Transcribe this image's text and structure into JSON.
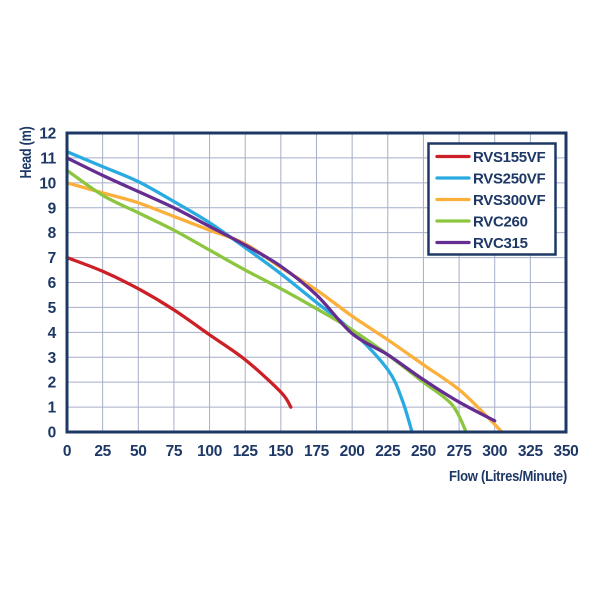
{
  "chart_data": {
    "type": "line",
    "title": "",
    "xlabel": "Flow (Litres/Minute)",
    "ylabel": "Head (m)",
    "xlim": [
      0,
      350
    ],
    "ylim": [
      0,
      12
    ],
    "xticks": [
      0,
      25,
      50,
      75,
      100,
      125,
      150,
      175,
      200,
      225,
      250,
      275,
      300,
      325,
      350
    ],
    "yticks": [
      0,
      1,
      2,
      3,
      4,
      5,
      6,
      7,
      8,
      9,
      10,
      11,
      12
    ],
    "grid": true,
    "legend_position": "top-right",
    "series": [
      {
        "name": "RVS155VF",
        "color": "#cc2026",
        "points": [
          [
            0,
            7.0
          ],
          [
            25,
            6.45
          ],
          [
            50,
            5.75
          ],
          [
            75,
            4.9
          ],
          [
            100,
            3.9
          ],
          [
            125,
            2.9
          ],
          [
            150,
            1.6
          ],
          [
            157,
            1.0
          ]
        ]
      },
      {
        "name": "RVS250VF",
        "color": "#29abe2",
        "points": [
          [
            0,
            11.25
          ],
          [
            25,
            10.65
          ],
          [
            50,
            10.05
          ],
          [
            75,
            9.25
          ],
          [
            100,
            8.4
          ],
          [
            125,
            7.4
          ],
          [
            150,
            6.35
          ],
          [
            175,
            5.2
          ],
          [
            200,
            4.05
          ],
          [
            225,
            2.5
          ],
          [
            235,
            1.3
          ],
          [
            242,
            0
          ]
        ]
      },
      {
        "name": "RVS300VF",
        "color": "#fbb03b",
        "points": [
          [
            0,
            10.0
          ],
          [
            25,
            9.6
          ],
          [
            50,
            9.2
          ],
          [
            75,
            8.65
          ],
          [
            100,
            8.1
          ],
          [
            125,
            7.55
          ],
          [
            150,
            6.6
          ],
          [
            175,
            5.7
          ],
          [
            200,
            4.65
          ],
          [
            225,
            3.7
          ],
          [
            250,
            2.7
          ],
          [
            275,
            1.7
          ],
          [
            295,
            0.6
          ],
          [
            305,
            0
          ]
        ]
      },
      {
        "name": "RVC260",
        "color": "#8cc63f",
        "points": [
          [
            0,
            10.5
          ],
          [
            25,
            9.5
          ],
          [
            50,
            8.8
          ],
          [
            75,
            8.1
          ],
          [
            100,
            7.3
          ],
          [
            125,
            6.5
          ],
          [
            150,
            5.75
          ],
          [
            175,
            4.95
          ],
          [
            200,
            4.1
          ],
          [
            225,
            3.1
          ],
          [
            250,
            2.0
          ],
          [
            270,
            1.1
          ],
          [
            280,
            0
          ]
        ]
      },
      {
        "name": "RVC315",
        "color": "#662d91",
        "points": [
          [
            0,
            11.0
          ],
          [
            25,
            10.3
          ],
          [
            50,
            9.65
          ],
          [
            75,
            9.0
          ],
          [
            100,
            8.25
          ],
          [
            125,
            7.5
          ],
          [
            150,
            6.65
          ],
          [
            175,
            5.5
          ],
          [
            200,
            3.95
          ],
          [
            225,
            3.1
          ],
          [
            250,
            2.1
          ],
          [
            275,
            1.2
          ],
          [
            300,
            0.45
          ]
        ]
      }
    ]
  },
  "style": {
    "frame_color": "#1e3866",
    "grid_color": "#a6aec9",
    "text_color": "#1e3866",
    "background": "#ffffff",
    "legend_bg": "#ffffff"
  }
}
